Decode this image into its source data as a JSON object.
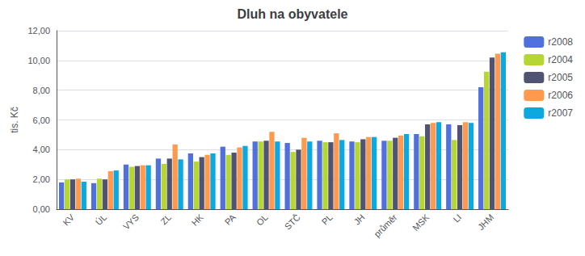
{
  "chart_data": {
    "type": "bar",
    "title": "Dluh na obyvatele",
    "ylabel": "tis. Kč",
    "categories": [
      "KV",
      "ÚL",
      "VYS",
      "ZL",
      "HK",
      "PA",
      "OL",
      "STČ",
      "PL",
      "JH",
      "průměr",
      "MSK",
      "LI",
      "JHM"
    ],
    "series": [
      {
        "name": "r2008",
        "values": [
          1.8,
          1.75,
          3.0,
          3.4,
          3.75,
          4.2,
          4.55,
          4.45,
          4.6,
          4.55,
          4.6,
          5.05,
          5.7,
          8.2
        ]
      },
      {
        "name": "r2004",
        "values": [
          2.0,
          2.05,
          2.85,
          3.05,
          3.2,
          3.65,
          4.55,
          3.85,
          4.5,
          4.5,
          4.6,
          4.9,
          4.65,
          9.25
        ]
      },
      {
        "name": "r2005",
        "values": [
          2.0,
          2.0,
          2.9,
          3.4,
          3.5,
          3.8,
          4.6,
          4.0,
          4.5,
          4.7,
          4.8,
          5.7,
          5.65,
          10.2
        ]
      },
      {
        "name": "r2006",
        "values": [
          2.05,
          2.55,
          2.95,
          4.35,
          3.65,
          4.15,
          5.2,
          4.8,
          5.1,
          4.85,
          4.95,
          5.8,
          5.85,
          10.45
        ]
      },
      {
        "name": "r2007",
        "values": [
          1.85,
          2.6,
          2.95,
          3.35,
          3.75,
          4.25,
          4.55,
          4.55,
          4.65,
          4.85,
          5.05,
          5.85,
          5.8,
          10.55
        ]
      }
    ],
    "ylim": [
      0,
      12
    ],
    "yticks": [
      {
        "value": 0,
        "label": "0,00"
      },
      {
        "value": 2,
        "label": "2,00"
      },
      {
        "value": 4,
        "label": "4,00"
      },
      {
        "value": 6,
        "label": "6,00"
      },
      {
        "value": 8,
        "label": "8,00"
      },
      {
        "value": 10,
        "label": "10,00"
      },
      {
        "value": 12,
        "label": "12,00"
      }
    ],
    "grid": true,
    "legend": "right"
  }
}
